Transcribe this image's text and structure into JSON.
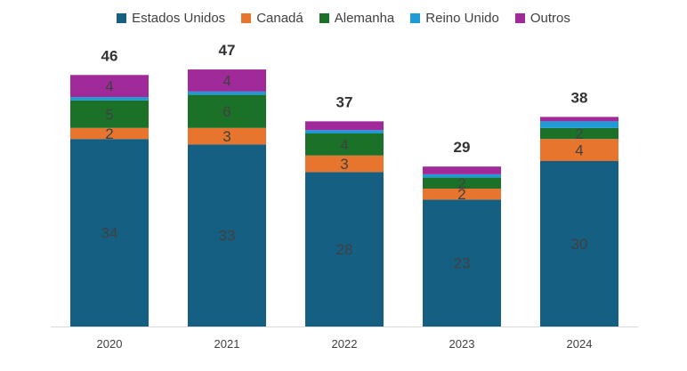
{
  "chart_data": {
    "type": "bar",
    "stacked": true,
    "categories": [
      "2020",
      "2021",
      "2022",
      "2023",
      "2024"
    ],
    "series": [
      {
        "name": "Estados Unidos",
        "color": "#155F83",
        "values": [
          34,
          33,
          28,
          23,
          30
        ],
        "labels": [
          "34",
          "33",
          "28",
          "23",
          "30"
        ]
      },
      {
        "name": "Canadá",
        "color": "#E8752E",
        "values": [
          2,
          3,
          3,
          2,
          4
        ],
        "labels": [
          "2",
          "3",
          "3",
          "2",
          "4"
        ]
      },
      {
        "name": "Alemanha",
        "color": "#1C7129",
        "values": [
          5,
          6,
          4,
          2,
          2
        ],
        "labels": [
          "5",
          "6",
          "4",
          "2",
          "2"
        ]
      },
      {
        "name": "Reino Unido",
        "color": "#1E9BD7",
        "values": [
          0.6,
          0.6,
          0.6,
          0.6,
          1.2
        ],
        "labels": [
          "",
          "",
          "",
          "",
          ""
        ]
      },
      {
        "name": "Outros",
        "color": "#A12A9B",
        "values": [
          4,
          4,
          1.6,
          1.4,
          0.8
        ],
        "labels": [
          "4",
          "4",
          "",
          "",
          ""
        ]
      }
    ],
    "totals": [
      "46",
      "47",
      "37",
      "29",
      "38"
    ],
    "ylim": [
      0,
      50
    ],
    "legend_position": "top",
    "grid": false
  }
}
